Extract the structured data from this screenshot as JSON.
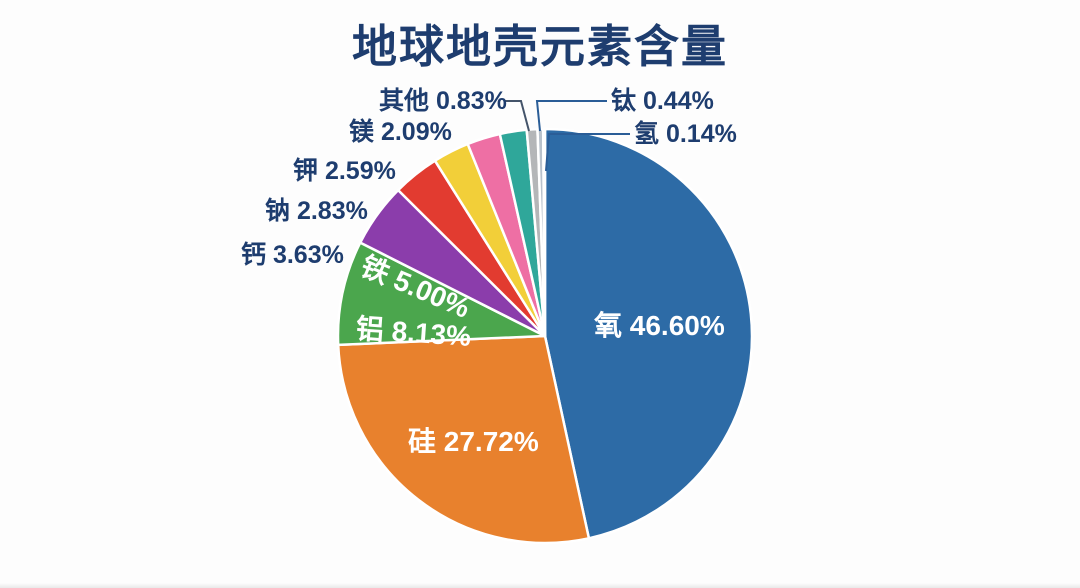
{
  "title": "地球地壳元素含量",
  "colors": {
    "background": "#fdfdfd",
    "title_text": "#1e3d6f",
    "label_text": "#1e3d6f",
    "slice_gap": "#ffffff",
    "leader_left": "#44546a",
    "leader_right": "#2a5d97"
  },
  "chart_data": {
    "type": "pie",
    "title": "地球地壳元素含量",
    "units": "%",
    "start_angle_deg": 0,
    "direction": "clockwise",
    "legend_position": "none",
    "slices": [
      {
        "id": "oxygen",
        "label": "氧",
        "value": 46.6,
        "display": "氧 46.60%",
        "color": "#2d6ba6",
        "label_placement": "inside"
      },
      {
        "id": "silicon",
        "label": "硅",
        "value": 27.72,
        "display": "硅 27.72%",
        "color": "#e8812d",
        "label_placement": "inside"
      },
      {
        "id": "aluminum",
        "label": "铝",
        "value": 8.13,
        "display": "铝 8.13%",
        "color": "#4ba64d",
        "label_placement": "inside"
      },
      {
        "id": "iron",
        "label": "铁",
        "value": 5.0,
        "display": "铁 5.00%",
        "color": "#8b3dab",
        "label_placement": "inside"
      },
      {
        "id": "calcium",
        "label": "钙",
        "value": 3.63,
        "display": "钙 3.63%",
        "color": "#e23b30",
        "label_placement": "outside-left"
      },
      {
        "id": "sodium",
        "label": "钠",
        "value": 2.83,
        "display": "钠 2.83%",
        "color": "#f2cf39",
        "label_placement": "outside-left"
      },
      {
        "id": "potassium",
        "label": "钾",
        "value": 2.59,
        "display": "钾 2.59%",
        "color": "#ee6fa4",
        "label_placement": "outside-left"
      },
      {
        "id": "magnesium",
        "label": "镁",
        "value": 2.09,
        "display": "镁 2.09%",
        "color": "#2fa79a",
        "label_placement": "outside-left"
      },
      {
        "id": "other",
        "label": "其他",
        "value": 0.83,
        "display": "其他 0.83%",
        "color": "#b4b6b8",
        "label_placement": "outside-left-leader"
      },
      {
        "id": "titanium",
        "label": "钛",
        "value": 0.44,
        "display": "钛 0.44%",
        "color": "#b9c2cc",
        "label_placement": "outside-right-leader"
      },
      {
        "id": "hydrogen",
        "label": "氢",
        "value": 0.14,
        "display": "氢 0.14%",
        "color": "#e9eef3",
        "label_placement": "outside-right-leader"
      }
    ]
  }
}
